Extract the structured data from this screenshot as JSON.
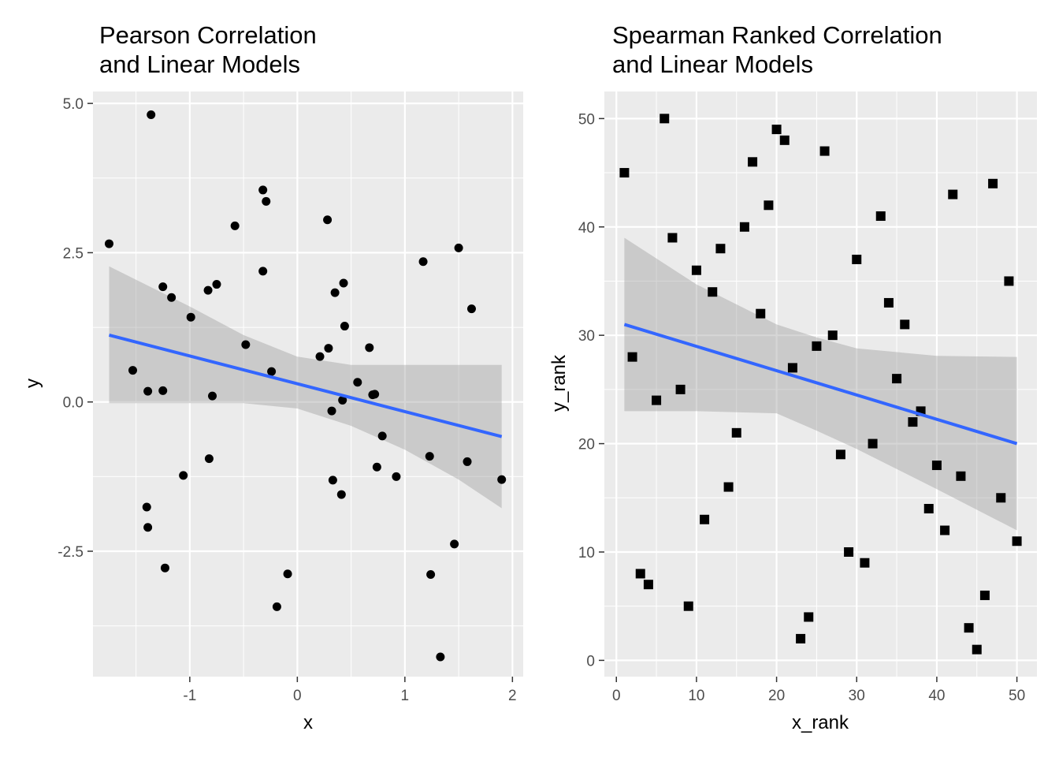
{
  "colors": {
    "panel_background": "#ebebeb",
    "grid": "#ffffff",
    "points": "#000000",
    "fit_line": "#3366ff",
    "confidence_band": "#999999",
    "tick_text": "#4d4d4d"
  },
  "chart_data": [
    {
      "type": "scatter",
      "title_lines": [
        "Pearson Correlation",
        "and Linear Models"
      ],
      "xlabel": "x",
      "ylabel": "y",
      "xlim": [
        -1.9,
        2.1
      ],
      "ylim": [
        -4.6,
        5.2
      ],
      "x_ticks": [
        -1,
        0,
        1,
        2
      ],
      "x_tick_labels": [
        "-1",
        "0",
        "1",
        "2"
      ],
      "y_ticks": [
        -2.5,
        0,
        2.5,
        5
      ],
      "y_tick_labels": [
        "-2.5",
        "0.0",
        "2.5",
        "5.0"
      ],
      "grid": true,
      "marker": "circle",
      "points": [
        [
          -1.75,
          2.65
        ],
        [
          -1.36,
          4.81
        ],
        [
          -1.53,
          0.53
        ],
        [
          -1.39,
          0.18
        ],
        [
          -1.4,
          -1.76
        ],
        [
          -1.39,
          -2.1
        ],
        [
          -1.25,
          1.93
        ],
        [
          -1.25,
          0.19
        ],
        [
          -1.23,
          -2.78
        ],
        [
          -1.17,
          1.75
        ],
        [
          -1.06,
          -1.23
        ],
        [
          -0.99,
          1.42
        ],
        [
          -0.83,
          1.87
        ],
        [
          -0.82,
          -0.95
        ],
        [
          -0.79,
          0.1
        ],
        [
          -0.75,
          1.97
        ],
        [
          -0.58,
          2.95
        ],
        [
          -0.48,
          0.96
        ],
        [
          -0.32,
          3.55
        ],
        [
          -0.32,
          2.19
        ],
        [
          -0.29,
          3.36
        ],
        [
          -0.24,
          0.51
        ],
        [
          -0.19,
          -3.43
        ],
        [
          -0.09,
          -2.88
        ],
        [
          0.21,
          0.76
        ],
        [
          0.28,
          3.05
        ],
        [
          0.29,
          0.9
        ],
        [
          0.32,
          -0.15
        ],
        [
          0.33,
          -1.31
        ],
        [
          0.35,
          1.83
        ],
        [
          0.41,
          -1.55
        ],
        [
          0.42,
          0.03
        ],
        [
          0.43,
          1.99
        ],
        [
          0.44,
          1.27
        ],
        [
          0.56,
          0.33
        ],
        [
          0.67,
          0.91
        ],
        [
          0.7,
          0.12
        ],
        [
          0.72,
          0.13
        ],
        [
          0.74,
          -1.09
        ],
        [
          0.79,
          -0.57
        ],
        [
          0.92,
          -1.25
        ],
        [
          1.17,
          2.35
        ],
        [
          1.23,
          -0.91
        ],
        [
          1.24,
          -2.89
        ],
        [
          1.33,
          -4.27
        ],
        [
          1.46,
          -2.38
        ],
        [
          1.5,
          2.58
        ],
        [
          1.58,
          -1.0
        ],
        [
          1.62,
          1.56
        ],
        [
          1.9,
          -1.3
        ]
      ],
      "fit_line": [
        [
          -1.75,
          1.12
        ],
        [
          1.9,
          -0.58
        ]
      ],
      "band_upper": [
        [
          -1.75,
          2.27
        ],
        [
          -1.0,
          1.6
        ],
        [
          -0.5,
          1.12
        ],
        [
          0.0,
          0.76
        ],
        [
          0.5,
          0.62
        ],
        [
          1.0,
          0.62
        ],
        [
          1.5,
          0.62
        ],
        [
          1.9,
          0.62
        ]
      ],
      "band_lower": [
        [
          -1.75,
          -0.02
        ],
        [
          -1.0,
          -0.02
        ],
        [
          -0.5,
          -0.02
        ],
        [
          0.0,
          -0.11
        ],
        [
          0.5,
          -0.4
        ],
        [
          1.0,
          -0.8
        ],
        [
          1.5,
          -1.3
        ],
        [
          1.9,
          -1.78
        ]
      ]
    },
    {
      "type": "scatter",
      "title_lines": [
        "Spearman Ranked Correlation",
        "and Linear Models"
      ],
      "xlabel": "x_rank",
      "ylabel": "y_rank",
      "xlim": [
        -1.5,
        52.5
      ],
      "ylim": [
        -1.5,
        52.5
      ],
      "x_ticks": [
        0,
        10,
        20,
        30,
        40,
        50
      ],
      "x_tick_labels": [
        "0",
        "10",
        "20",
        "30",
        "40",
        "50"
      ],
      "y_ticks": [
        0,
        10,
        20,
        30,
        40,
        50
      ],
      "y_tick_labels": [
        "0",
        "10",
        "20",
        "30",
        "40",
        "50"
      ],
      "grid": true,
      "marker": "square",
      "points": [
        [
          1,
          45
        ],
        [
          2,
          28
        ],
        [
          3,
          8
        ],
        [
          4,
          7
        ],
        [
          5,
          24
        ],
        [
          6,
          50
        ],
        [
          7,
          39
        ],
        [
          8,
          25
        ],
        [
          9,
          5
        ],
        [
          10,
          36
        ],
        [
          11,
          13
        ],
        [
          12,
          34
        ],
        [
          13,
          38
        ],
        [
          14,
          16
        ],
        [
          15,
          21
        ],
        [
          16,
          40
        ],
        [
          17,
          46
        ],
        [
          18,
          32
        ],
        [
          19,
          42
        ],
        [
          20,
          49
        ],
        [
          21,
          48
        ],
        [
          22,
          27
        ],
        [
          23,
          2
        ],
        [
          24,
          4
        ],
        [
          25,
          29
        ],
        [
          26,
          47
        ],
        [
          27,
          30
        ],
        [
          28,
          19
        ],
        [
          29,
          10
        ],
        [
          30,
          37
        ],
        [
          31,
          9
        ],
        [
          32,
          20
        ],
        [
          33,
          41
        ],
        [
          34,
          33
        ],
        [
          35,
          26
        ],
        [
          36,
          31
        ],
        [
          37,
          22
        ],
        [
          38,
          23
        ],
        [
          39,
          14
        ],
        [
          40,
          18
        ],
        [
          41,
          12
        ],
        [
          42,
          43
        ],
        [
          43,
          17
        ],
        [
          44,
          3
        ],
        [
          45,
          1
        ],
        [
          46,
          6
        ],
        [
          47,
          44
        ],
        [
          48,
          15
        ],
        [
          49,
          35
        ],
        [
          50,
          11
        ]
      ],
      "fit_line": [
        [
          1,
          31.0
        ],
        [
          50,
          20.0
        ]
      ],
      "band_upper": [
        [
          1,
          39.0
        ],
        [
          10,
          34.7
        ],
        [
          20,
          31.0
        ],
        [
          25,
          29.8
        ],
        [
          30,
          28.8
        ],
        [
          40,
          28.1
        ],
        [
          50,
          28.0
        ]
      ],
      "band_lower": [
        [
          1,
          23.0
        ],
        [
          10,
          23.0
        ],
        [
          20,
          22.8
        ],
        [
          25,
          21.2
        ],
        [
          30,
          19.5
        ],
        [
          40,
          15.8
        ],
        [
          50,
          12.0
        ]
      ]
    }
  ]
}
